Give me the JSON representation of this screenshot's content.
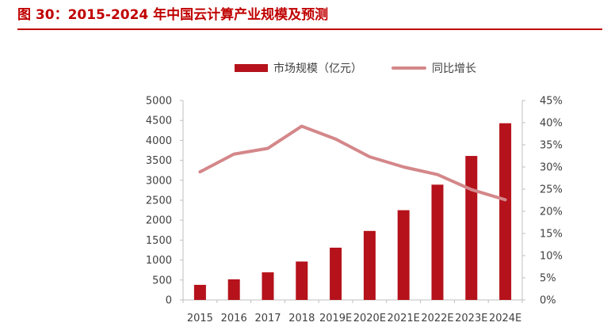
{
  "figure": {
    "title": "图 30：2015-2024 年中国云计算产业规模及预测"
  },
  "colors": {
    "title": "#c00000",
    "bar": "#b5121b",
    "line": "#d4878a",
    "text": "#404040"
  },
  "chart_data": {
    "type": "bar",
    "categories": [
      "2015",
      "2016",
      "2017",
      "2018",
      "2019E",
      "2020E",
      "2021E",
      "2022E",
      "2023E",
      "2024E"
    ],
    "series": [
      {
        "name": "市场规模（亿元）",
        "type": "bar",
        "axis": "left",
        "values": [
          378,
          516,
          692,
          963,
          1310,
          1730,
          2250,
          2890,
          3610,
          4430
        ]
      },
      {
        "name": "同比增长",
        "type": "line",
        "axis": "right",
        "values": [
          28.9,
          32.9,
          34.2,
          39.2,
          36.3,
          32.3,
          30.0,
          28.3,
          24.9,
          22.6
        ]
      }
    ],
    "y_left": {
      "min": 0,
      "max": 5000,
      "step": 500,
      "tick_labels": [
        "0",
        "500",
        "1000",
        "1500",
        "2000",
        "2500",
        "3000",
        "3500",
        "4000",
        "4500",
        "5000"
      ]
    },
    "y_right": {
      "min": 0,
      "max": 45,
      "step": 5,
      "tick_labels": [
        "0%",
        "5%",
        "10%",
        "15%",
        "20%",
        "25%",
        "30%",
        "35%",
        "40%",
        "45%"
      ]
    },
    "legend_position": "top",
    "grid": false
  }
}
